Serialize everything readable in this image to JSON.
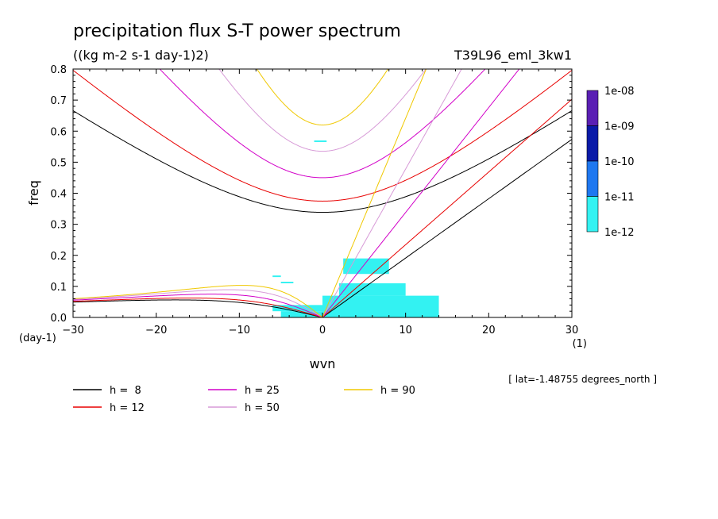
{
  "chart_data": {
    "type": "line",
    "title": "precipitation flux S-T power spectrum",
    "subtitle": "((kg m-2 s-1 day-1)2)",
    "experiment": "T39L96_eml_3kw1",
    "xlabel": "wvn",
    "ylabel": "freq",
    "x_unit": "(1)",
    "y_unit": "(day-1)",
    "xlim": [
      -30,
      30
    ],
    "ylim": [
      0,
      0.8
    ],
    "x_ticks": [
      -30,
      -20,
      -10,
      0,
      10,
      20,
      30
    ],
    "x_tick_labels": [
      "-30",
      "-20",
      "-10",
      "0",
      "10",
      "20",
      "30"
    ],
    "y_ticks": [
      0,
      0.1,
      0.2,
      0.3,
      0.4,
      0.5,
      0.6,
      0.7,
      0.8
    ],
    "y_tick_labels": [
      "0.0",
      "0.1",
      "0.2",
      "0.3",
      "0.4",
      "0.5",
      "0.6",
      "0.7",
      "0.8"
    ],
    "footnote": "[ lat=-1.48755 degrees_north ]",
    "colorbar": {
      "labels": [
        "1e-08",
        "1e-09",
        "1e-10",
        "1e-11",
        "1e-12"
      ],
      "colors": [
        "#5a1fb4",
        "#0a1aa8",
        "#1f78f0",
        "#33f2f2"
      ]
    },
    "series": [
      {
        "name": "h =  8",
        "h": 8,
        "color": "#000000"
      },
      {
        "name": "h = 12",
        "h": 12,
        "color": "#e80000"
      },
      {
        "name": "h = 25",
        "h": 25,
        "color": "#d200c8"
      },
      {
        "name": "h = 50",
        "h": 50,
        "color": "#d79ad7"
      },
      {
        "name": "h = 90",
        "h": 90,
        "color": "#f0c800"
      }
    ],
    "spectrum_patches": [
      {
        "x": [
          -6,
          2
        ],
        "y": [
          0.02,
          0.04
        ]
      },
      {
        "x": [
          -5,
          0
        ],
        "y": [
          0.0,
          0.02
        ]
      },
      {
        "x": [
          0,
          14
        ],
        "y": [
          0.0,
          0.07
        ]
      },
      {
        "x": [
          2,
          10
        ],
        "y": [
          0.07,
          0.11
        ]
      },
      {
        "x": [
          2.5,
          8
        ],
        "y": [
          0.14,
          0.19
        ]
      },
      {
        "x": [
          -6,
          -5
        ],
        "y": [
          0.13,
          0.135
        ]
      },
      {
        "x": [
          -5,
          -3.5
        ],
        "y": [
          0.11,
          0.115
        ]
      },
      {
        "x": [
          -1,
          0.5
        ],
        "y": [
          0.565,
          0.57
        ]
      }
    ],
    "legend_position": "bottom"
  }
}
